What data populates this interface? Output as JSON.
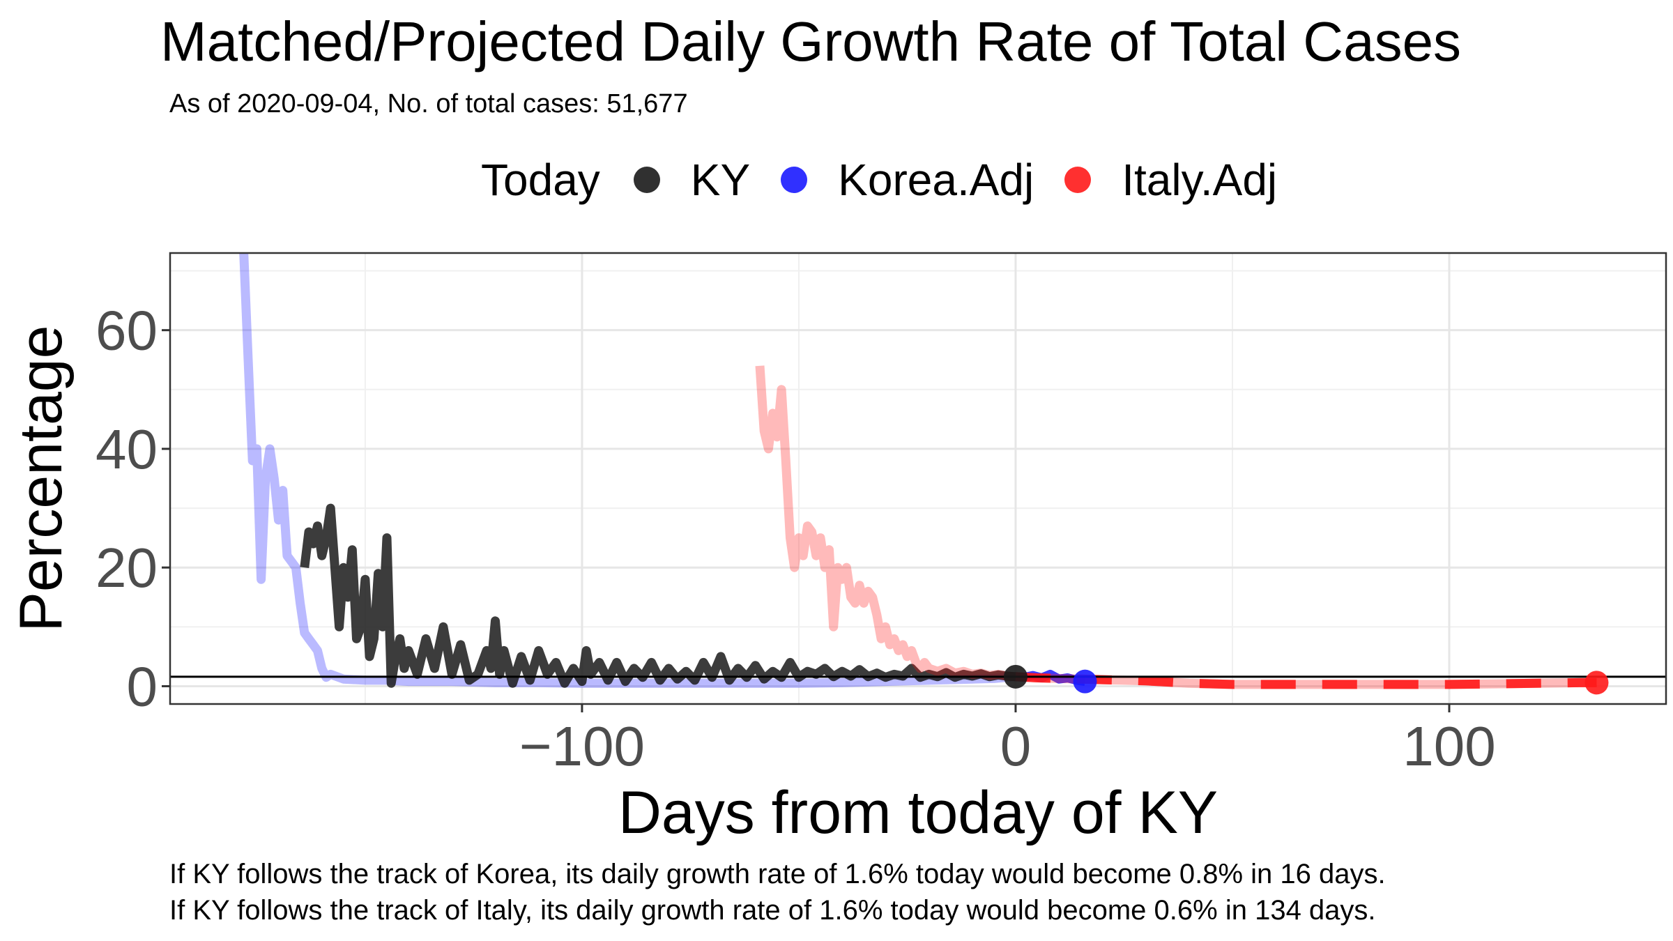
{
  "title": "Matched/Projected Daily Growth Rate of Total Cases",
  "subtitle": "As of 2020-09-04, No. of total cases: 51,677",
  "legend": {
    "title": "Today",
    "items": [
      {
        "label": "KY",
        "color": "#1a1a1a"
      },
      {
        "label": "Korea.Adj",
        "color": "#1a1aff"
      },
      {
        "label": "Italy.Adj",
        "color": "#ff1a1a"
      }
    ]
  },
  "caption": [
    "If KY follows the track of Korea, its daily growth rate of 1.6% today would become 0.8% in 16 days.",
    "If KY follows the track of Italy, its daily growth rate of 1.6% today would become 0.6% in 134 days."
  ],
  "chart_data": {
    "type": "line",
    "xlabel": "Days from today of KY",
    "ylabel": "Percentage",
    "xlim": [
      -195,
      150
    ],
    "ylim": [
      -3,
      73
    ],
    "xticks": [
      -100,
      0,
      100
    ],
    "yticks": [
      0,
      20,
      40,
      60
    ],
    "grid": true,
    "legend_position": "top",
    "hline": 1.6,
    "series": [
      {
        "name": "Korea.Adj",
        "color": "#1a1aff",
        "style": "solid-faded",
        "x": [
          -178,
          -177,
          -176,
          -175,
          -174,
          -173,
          -172,
          -171,
          -170,
          -169,
          -168,
          -167,
          -166,
          -165,
          -164,
          -163,
          -162,
          -161,
          -160,
          -159,
          -158,
          -155,
          -150,
          -145,
          -140,
          -130,
          -120,
          -110,
          -100,
          -90,
          -80,
          -70,
          -60,
          -50,
          -40,
          -30,
          -20,
          -10,
          -5,
          -2,
          0
        ],
        "y": [
          73,
          55,
          38,
          40,
          18,
          35,
          40,
          35,
          28,
          33,
          22,
          21,
          20,
          14,
          9,
          8,
          7,
          6,
          3,
          1.5,
          2,
          1.2,
          1,
          1,
          0.8,
          0.8,
          0.6,
          0.6,
          0.5,
          0.5,
          0.5,
          0.5,
          0.5,
          0.5,
          0.6,
          0.8,
          1,
          1.2,
          1.3,
          1.5,
          1.6
        ]
      },
      {
        "name": "Korea.Adj projected",
        "color": "#1a1aff",
        "style": "solid",
        "x": [
          0,
          2,
          4,
          6,
          8,
          10,
          12,
          14,
          16
        ],
        "y": [
          1.6,
          1.5,
          1.8,
          1.4,
          2,
          1.2,
          1.4,
          1.0,
          0.8
        ]
      },
      {
        "name": "KY",
        "color": "#1a1a1a",
        "style": "solid",
        "x": [
          -164,
          -163,
          -162,
          -161,
          -160,
          -159,
          -158,
          -157,
          -156,
          -155,
          -154,
          -153,
          -152,
          -151,
          -150,
          -149,
          -148,
          -147,
          -146,
          -145,
          -144,
          -143,
          -142,
          -141,
          -140,
          -138,
          -136,
          -134,
          -132,
          -130,
          -128,
          -126,
          -124,
          -122,
          -121,
          -120,
          -119,
          -118,
          -116,
          -114,
          -112,
          -110,
          -108,
          -106,
          -104,
          -102,
          -100,
          -99,
          -98,
          -96,
          -94,
          -92,
          -90,
          -88,
          -86,
          -84,
          -82,
          -80,
          -78,
          -76,
          -74,
          -72,
          -70,
          -68,
          -66,
          -64,
          -62,
          -60,
          -58,
          -56,
          -54,
          -52,
          -50,
          -48,
          -46,
          -44,
          -42,
          -40,
          -38,
          -36,
          -34,
          -32,
          -30,
          -28,
          -26,
          -24,
          -22,
          -20,
          -18,
          -16,
          -14,
          -12,
          -10,
          -8,
          -6,
          -4,
          -2,
          0
        ],
        "y": [
          20,
          26,
          24,
          27,
          22,
          25,
          30,
          20,
          10,
          20,
          15,
          23,
          8,
          10,
          18,
          5,
          8,
          19,
          10,
          25,
          0.5,
          5,
          8,
          3,
          6,
          2,
          8,
          3,
          10,
          2,
          7,
          1,
          2,
          6,
          3,
          11,
          2,
          6,
          0.5,
          5,
          1,
          6,
          2,
          4,
          0.5,
          3,
          0.8,
          6,
          2,
          4,
          1,
          4,
          0.8,
          3,
          1.5,
          4,
          1,
          3,
          1.2,
          2.5,
          1,
          4,
          1.5,
          5,
          1,
          3,
          1.5,
          3.5,
          1.2,
          2.5,
          1.5,
          4,
          1.5,
          2.5,
          2,
          3,
          1.6,
          2.5,
          1.7,
          2.8,
          1.6,
          2.2,
          1.5,
          2,
          1.7,
          3,
          1.5,
          2,
          1.6,
          2.3,
          1.5,
          2,
          1.7,
          2.1,
          1.6,
          1.9,
          1.7,
          1.6
        ]
      },
      {
        "name": "Italy.Adj",
        "color": "#ff1a1a",
        "style": "solid-faded",
        "x": [
          -59,
          -58,
          -57,
          -56,
          -55,
          -54,
          -53,
          -52,
          -51,
          -50,
          -49,
          -48,
          -47,
          -46,
          -45,
          -44,
          -43,
          -42,
          -41,
          -40,
          -39,
          -38,
          -37,
          -36,
          -35,
          -34,
          -33,
          -32,
          -31,
          -30,
          -29,
          -28,
          -27,
          -26,
          -25,
          -24,
          -23,
          -22,
          -21,
          -20,
          -18,
          -16,
          -14,
          -12,
          -10,
          -8,
          -6,
          -4,
          -2,
          0
        ],
        "y": [
          54,
          43,
          40,
          46,
          42,
          50,
          38,
          25,
          20,
          25,
          22,
          27,
          26,
          22,
          25,
          20,
          23,
          10,
          20,
          18,
          20,
          15,
          14,
          17,
          14,
          16,
          15,
          12,
          8,
          10,
          7,
          8,
          6,
          7,
          5,
          6,
          4,
          3,
          4,
          3,
          2.5,
          3,
          2.2,
          2.5,
          2,
          2.2,
          1.8,
          2,
          1.7,
          1.6
        ]
      },
      {
        "name": "Italy.Adj projected",
        "color": "#ff1a1a",
        "style": "dashed",
        "x": [
          0,
          5,
          10,
          15,
          20,
          25,
          30,
          40,
          50,
          60,
          70,
          80,
          90,
          100,
          110,
          120,
          130,
          134
        ],
        "y": [
          1.6,
          1.4,
          1.3,
          1.2,
          1.1,
          1.0,
          0.9,
          0.5,
          0.3,
          0.3,
          0.3,
          0.3,
          0.3,
          0.3,
          0.4,
          0.5,
          0.6,
          0.6
        ]
      }
    ],
    "points": [
      {
        "name": "KY",
        "x": 0,
        "y": 1.6,
        "color": "#1a1a1a"
      },
      {
        "name": "Korea.Adj",
        "x": 16,
        "y": 0.8,
        "color": "#1a1aff"
      },
      {
        "name": "Italy.Adj",
        "x": 134,
        "y": 0.6,
        "color": "#ff1a1a"
      }
    ]
  }
}
